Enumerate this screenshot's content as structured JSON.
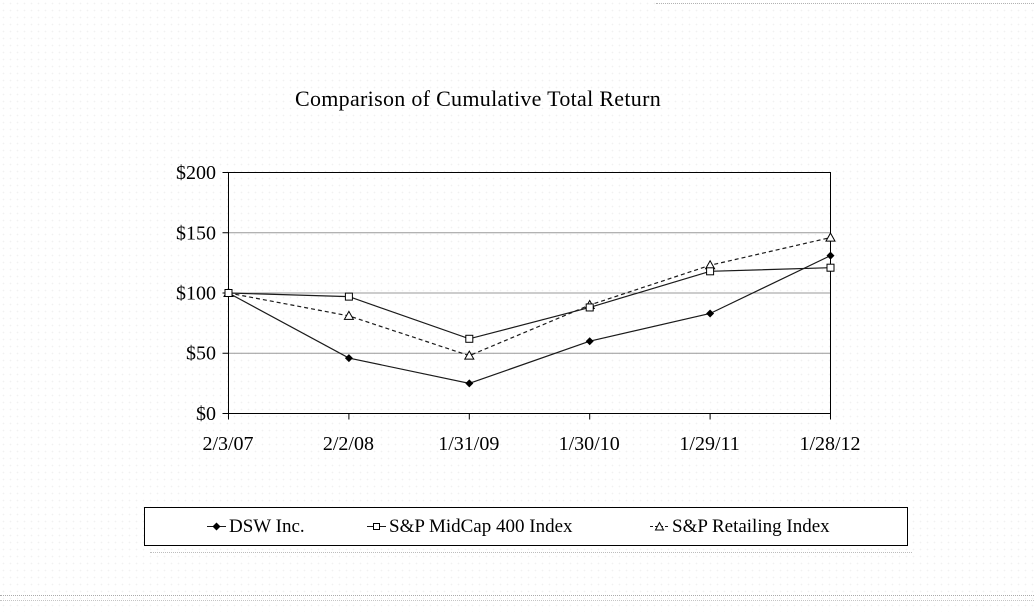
{
  "page": {
    "background": "#ffffff"
  },
  "chart_data": {
    "type": "line",
    "title": "Comparison of Cumulative Total Return",
    "x_labels": [
      "2/3/07",
      "2/2/08",
      "1/31/09",
      "1/30/10",
      "1/29/11",
      "1/28/12"
    ],
    "y_ticks": [
      "$200",
      "$150",
      "$100",
      "$50",
      "$0"
    ],
    "y_tick_values": [
      200,
      150,
      100,
      50,
      0
    ],
    "ylim": [
      0,
      200
    ],
    "grid": "horizontal",
    "gridline_color": "#999999",
    "axis_color": "#000000",
    "legend_position": "bottom-box",
    "series": [
      {
        "name": "DSW Inc.",
        "marker": "filled-diamond",
        "line": "solid",
        "color": "#1a1a1a",
        "values": [
          100,
          46,
          25,
          60,
          83,
          131
        ]
      },
      {
        "name": "S&P MidCap 400 Index",
        "marker": "open-square",
        "line": "solid",
        "color": "#1a1a1a",
        "values": [
          100,
          97,
          62,
          88,
          118,
          121
        ]
      },
      {
        "name": "S&P Retailing Index",
        "marker": "open-triangle",
        "line": "dashed",
        "color": "#1a1a1a",
        "values": [
          100,
          81,
          48,
          90,
          123,
          146
        ]
      }
    ]
  }
}
